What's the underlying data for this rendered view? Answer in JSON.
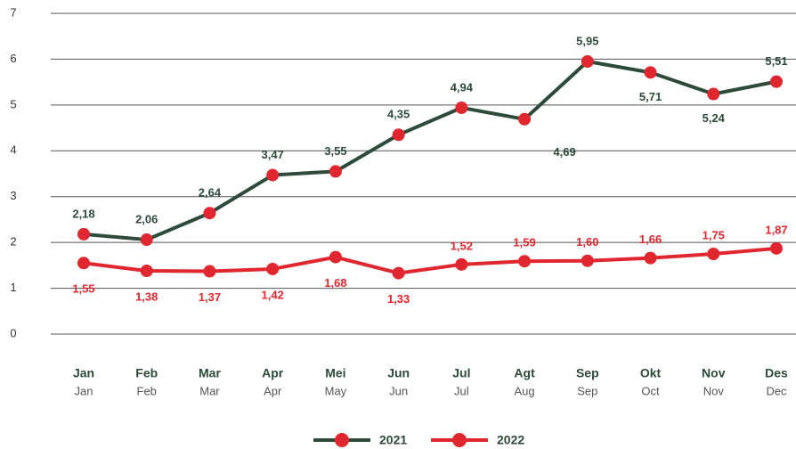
{
  "chart_data": {
    "type": "line",
    "categories": [
      "Jan",
      "Feb",
      "Mar",
      "Apr",
      "Mei",
      "Jun",
      "Jul",
      "Agt",
      "Sep",
      "Okt",
      "Nov",
      "Des"
    ],
    "categories_en": [
      "Jan",
      "Feb",
      "Mar",
      "Apr",
      "May",
      "Jun",
      "Jul",
      "Aug",
      "Sep",
      "Oct",
      "Nov",
      "Dec"
    ],
    "series": [
      {
        "name": "2021",
        "color": "#2d4a3a",
        "values": [
          2.18,
          2.06,
          2.64,
          3.47,
          3.55,
          4.35,
          4.94,
          4.69,
          5.95,
          5.71,
          5.24,
          5.51
        ],
        "value_labels": [
          "2,18",
          "2,06",
          "2,64",
          "3,47",
          "3,55",
          "4,35",
          "4,94",
          "4,69",
          "5,95",
          "5,71",
          "5,24",
          "5,51"
        ]
      },
      {
        "name": "2022",
        "color": "#e0262e",
        "values": [
          1.55,
          1.38,
          1.37,
          1.42,
          1.68,
          1.33,
          1.52,
          1.59,
          1.6,
          1.66,
          1.75,
          1.87
        ],
        "value_labels": [
          "1,55",
          "1,38",
          "1,37",
          "1,42",
          "1,68",
          "1,33",
          "1,52",
          "1,59",
          "1,60",
          "1,66",
          "1,75",
          "1,87"
        ]
      }
    ],
    "ylim": [
      0,
      7
    ],
    "yticks": [
      0,
      1,
      2,
      3,
      4,
      5,
      6,
      7
    ],
    "grid": true
  }
}
